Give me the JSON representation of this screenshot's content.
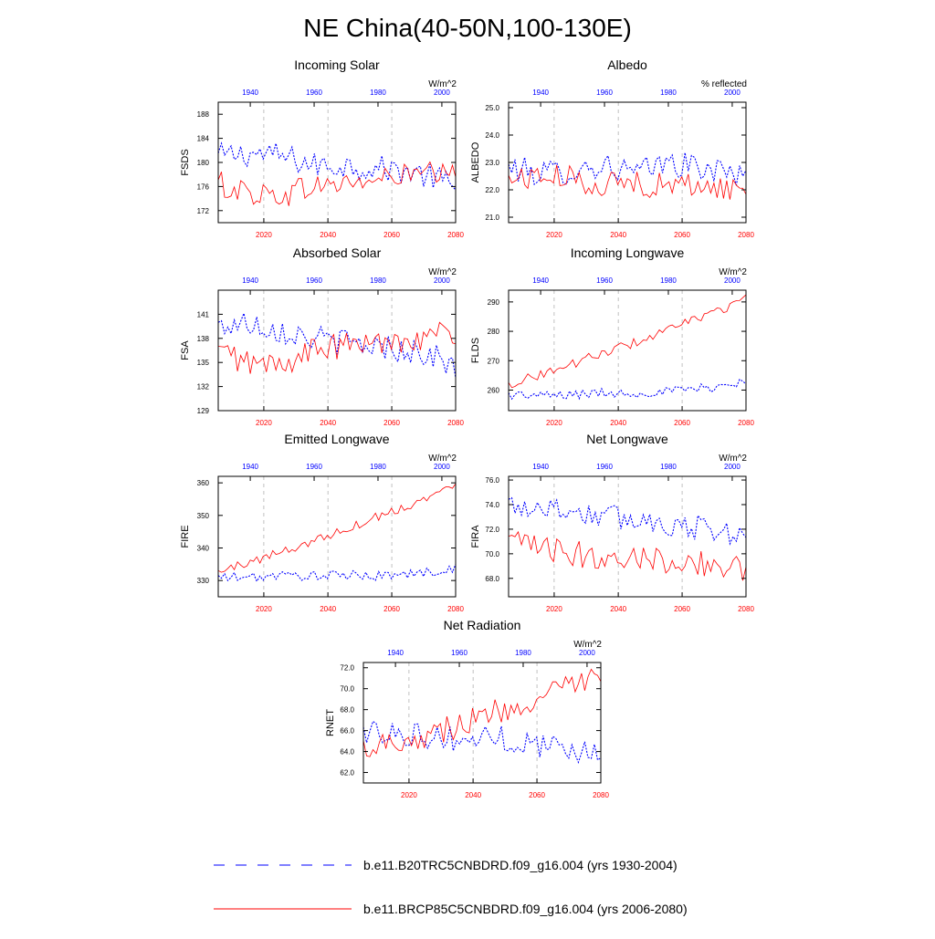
{
  "title": "NE China(40-50N,100-130E)",
  "colors": {
    "historical": "#0000ff",
    "future": "#ff0000",
    "axis": "#000000",
    "grid": "#999999"
  },
  "legend": {
    "historical": "b.e11.B20TRC5CNBDRD.f09_g16.004 (yrs 1930-2004)",
    "future": "b.e11.BRCP85C5CNBDRD.f09_g16.004 (yrs 2006-2080)"
  },
  "chart_data": [
    {
      "type": "line",
      "title": "Incoming Solar",
      "units": "W/m^2",
      "ylabel": "FSDS",
      "ylim": [
        170,
        190
      ],
      "yticks": [
        172,
        176,
        180,
        184,
        188
      ],
      "ytick_labels": [
        "172",
        "176",
        "180",
        "184",
        "188"
      ],
      "top_ticks": [
        "1940",
        "1960",
        "1980",
        "2000"
      ],
      "bottom_ticks": [
        "2020",
        "2040",
        "2060",
        "2080"
      ],
      "series": [
        {
          "name": "b.e11.B20TRC5CNBDRD.f09_g16.004 (yrs 1930-2004)",
          "x": [
            1930,
            1940,
            1950,
            1960,
            1970,
            1980,
            1990,
            2000,
            2004
          ],
          "values": [
            181.0,
            181.5,
            181.0,
            179.5,
            179.5,
            179.0,
            178.5,
            177.0,
            175.0
          ]
        },
        {
          "name": "b.e11.BRCP85C5CNBDRD.f09_g16.004 (yrs 2006-2080)",
          "x": [
            2006,
            2015,
            2025,
            2035,
            2045,
            2055,
            2065,
            2075,
            2080
          ],
          "values": [
            176.5,
            175.0,
            174.5,
            176.0,
            176.5,
            177.0,
            178.0,
            178.0,
            177.5
          ]
        }
      ]
    },
    {
      "type": "line",
      "title": "Albedo",
      "units": "% reflected",
      "ylabel": "ALBEDO",
      "ylim": [
        20.8,
        25.2
      ],
      "yticks": [
        21,
        22,
        23,
        24,
        25
      ],
      "ytick_labels": [
        "21.0",
        "22.0",
        "23.0",
        "24.0",
        "25.0"
      ],
      "top_ticks": [
        "1940",
        "1960",
        "1980",
        "2000"
      ],
      "bottom_ticks": [
        "2020",
        "2040",
        "2060",
        "2080"
      ],
      "series": [
        {
          "name": "b.e11.B20TRC5CNBDRD.f09_g16.004 (yrs 1930-2004)",
          "x": [
            1930,
            1940,
            1950,
            1960,
            1970,
            1980,
            1990,
            2000,
            2004
          ],
          "values": [
            22.8,
            22.6,
            22.7,
            22.9,
            22.6,
            23.0,
            22.8,
            22.6,
            22.8
          ]
        },
        {
          "name": "b.e11.BRCP85C5CNBDRD.f09_g16.004 (yrs 2006-2080)",
          "x": [
            2006,
            2015,
            2025,
            2035,
            2045,
            2055,
            2065,
            2075,
            2080
          ],
          "values": [
            22.4,
            22.5,
            22.4,
            22.2,
            22.3,
            22.1,
            22.2,
            22.0,
            22.0
          ]
        }
      ]
    },
    {
      "type": "line",
      "title": "Absorbed Solar",
      "units": "W/m^2",
      "ylabel": "FSA",
      "ylim": [
        129,
        144
      ],
      "yticks": [
        129,
        132,
        135,
        138,
        141
      ],
      "ytick_labels": [
        "129",
        "132",
        "135",
        "138",
        "141"
      ],
      "top_ticks": [
        "1940",
        "1960",
        "1980",
        "2000"
      ],
      "bottom_ticks": [
        "2020",
        "2040",
        "2060",
        "2080"
      ],
      "series": [
        {
          "name": "b.e11.B20TRC5CNBDRD.f09_g16.004 (yrs 1930-2004)",
          "x": [
            1930,
            1940,
            1950,
            1960,
            1970,
            1980,
            1990,
            2000,
            2004
          ],
          "values": [
            139.5,
            140.0,
            139.0,
            138.0,
            137.5,
            137.0,
            136.5,
            135.5,
            134.0
          ]
        },
        {
          "name": "b.e11.BRCP85C5CNBDRD.f09_g16.004 (yrs 2006-2080)",
          "x": [
            2006,
            2015,
            2025,
            2035,
            2045,
            2055,
            2065,
            2075,
            2080
          ],
          "values": [
            136.5,
            135.0,
            134.5,
            136.5,
            137.0,
            137.5,
            138.0,
            138.5,
            138.5
          ]
        }
      ]
    },
    {
      "type": "line",
      "title": "Incoming Longwave",
      "units": "W/m^2",
      "ylabel": "FLDS",
      "ylim": [
        253,
        294
      ],
      "yticks": [
        260,
        270,
        280,
        290
      ],
      "ytick_labels": [
        "260",
        "270",
        "280",
        "290"
      ],
      "top_ticks": [
        "1940",
        "1960",
        "1980",
        "2000"
      ],
      "bottom_ticks": [
        "2020",
        "2040",
        "2060",
        "2080"
      ],
      "series": [
        {
          "name": "b.e11.B20TRC5CNBDRD.f09_g16.004 (yrs 1930-2004)",
          "x": [
            1930,
            1940,
            1950,
            1960,
            1970,
            1980,
            1990,
            2000,
            2004
          ],
          "values": [
            258.5,
            258.0,
            258.5,
            259.0,
            259.0,
            259.5,
            260.5,
            262.0,
            263.5
          ]
        },
        {
          "name": "b.e11.BRCP85C5CNBDRD.f09_g16.004 (yrs 2006-2080)",
          "x": [
            2006,
            2015,
            2025,
            2035,
            2045,
            2055,
            2065,
            2075,
            2080
          ],
          "values": [
            262.0,
            265.0,
            268.5,
            272.5,
            276.0,
            280.0,
            284.5,
            288.5,
            291.0
          ]
        }
      ]
    },
    {
      "type": "line",
      "title": "Emitted Longwave",
      "units": "W/m^2",
      "ylabel": "FIRE",
      "ylim": [
        325,
        362
      ],
      "yticks": [
        330,
        340,
        350,
        360
      ],
      "ytick_labels": [
        "330",
        "340",
        "350",
        "360"
      ],
      "top_ticks": [
        "1940",
        "1960",
        "1980",
        "2000"
      ],
      "bottom_ticks": [
        "2020",
        "2040",
        "2060",
        "2080"
      ],
      "series": [
        {
          "name": "b.e11.B20TRC5CNBDRD.f09_g16.004 (yrs 1930-2004)",
          "x": [
            1930,
            1940,
            1950,
            1960,
            1970,
            1980,
            1990,
            2000,
            2004
          ],
          "values": [
            331.0,
            331.0,
            331.5,
            331.5,
            331.5,
            331.5,
            332.0,
            333.0,
            334.0
          ]
        },
        {
          "name": "b.e11.BRCP85C5CNBDRD.f09_g16.004 (yrs 2006-2080)",
          "x": [
            2006,
            2015,
            2025,
            2035,
            2045,
            2055,
            2065,
            2075,
            2080
          ],
          "values": [
            332.5,
            335.5,
            338.5,
            342.0,
            345.5,
            349.5,
            353.0,
            357.0,
            359.0
          ]
        }
      ]
    },
    {
      "type": "line",
      "title": "Net Longwave",
      "units": "W/m^2",
      "ylabel": "FIRA",
      "ylim": [
        66.5,
        76.3
      ],
      "yticks": [
        68,
        70,
        72,
        74,
        76
      ],
      "ytick_labels": [
        "68.0",
        "70.0",
        "72.0",
        "74.0",
        "76.0"
      ],
      "top_ticks": [
        "1940",
        "1960",
        "1980",
        "2000"
      ],
      "bottom_ticks": [
        "2020",
        "2040",
        "2060",
        "2080"
      ],
      "series": [
        {
          "name": "b.e11.B20TRC5CNBDRD.f09_g16.004 (yrs 1930-2004)",
          "x": [
            1930,
            1940,
            1950,
            1960,
            1970,
            1980,
            1990,
            2000,
            2004
          ],
          "values": [
            74.0,
            73.8,
            73.5,
            73.0,
            72.8,
            72.5,
            72.0,
            71.8,
            71.0
          ]
        },
        {
          "name": "b.e11.BRCP85C5CNBDRD.f09_g16.004 (yrs 2006-2080)",
          "x": [
            2006,
            2015,
            2025,
            2035,
            2045,
            2055,
            2065,
            2075,
            2080
          ],
          "values": [
            71.0,
            70.5,
            70.0,
            69.8,
            69.8,
            69.5,
            69.2,
            69.0,
            68.8
          ]
        }
      ]
    },
    {
      "type": "line",
      "title": "Net Radiation",
      "units": "W/m^2",
      "ylabel": "RNET",
      "ylim": [
        61,
        72.5
      ],
      "yticks": [
        62,
        64,
        66,
        68,
        70,
        72
      ],
      "ytick_labels": [
        "62.0",
        "64.0",
        "66.0",
        "68.0",
        "70.0",
        "72.0"
      ],
      "top_ticks": [
        "1940",
        "1960",
        "1980",
        "2000"
      ],
      "bottom_ticks": [
        "2020",
        "2040",
        "2060",
        "2080"
      ],
      "series": [
        {
          "name": "b.e11.B20TRC5CNBDRD.f09_g16.004 (yrs 1930-2004)",
          "x": [
            1930,
            1940,
            1950,
            1960,
            1970,
            1980,
            1990,
            2000,
            2004
          ],
          "values": [
            65.8,
            66.0,
            65.5,
            65.0,
            65.5,
            64.8,
            64.5,
            64.0,
            63.5
          ]
        },
        {
          "name": "b.e11.BRCP85C5CNBDRD.f09_g16.004 (yrs 2006-2080)",
          "x": [
            2006,
            2015,
            2025,
            2035,
            2045,
            2055,
            2065,
            2075,
            2080
          ],
          "values": [
            64.5,
            65.0,
            65.5,
            66.5,
            67.5,
            68.5,
            69.5,
            70.5,
            71.0
          ]
        }
      ]
    }
  ]
}
